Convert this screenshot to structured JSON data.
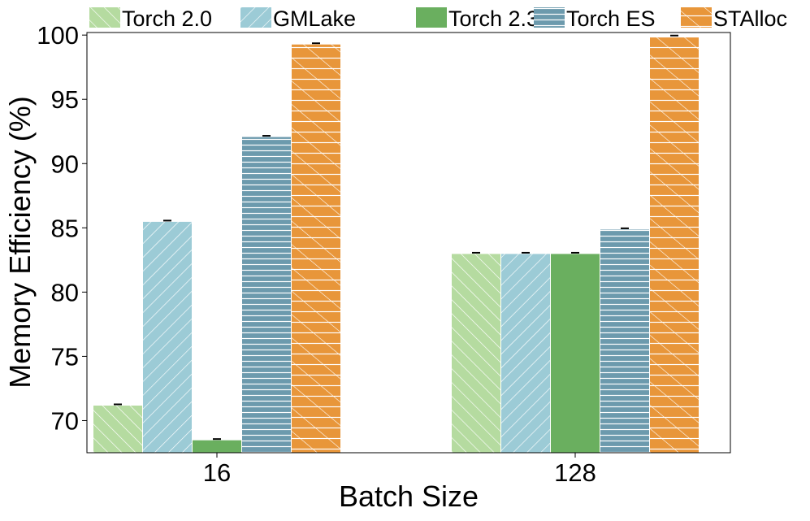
{
  "chart_data": {
    "type": "bar",
    "title": "",
    "xlabel": "Batch Size",
    "ylabel": "Memory Efficiency (%)",
    "categories": [
      "16",
      "128"
    ],
    "ylim": [
      67.5,
      100.2
    ],
    "yticks": [
      70,
      75,
      80,
      85,
      90,
      95,
      100
    ],
    "legend_position": "top",
    "grid": false,
    "series": [
      {
        "name": "Torch 2.0",
        "values": [
          71.2,
          83.0
        ],
        "color": "#b5dba0",
        "hatch": "backslash"
      },
      {
        "name": "GMLake",
        "values": [
          85.5,
          83.0
        ],
        "color": "#9ccbd6",
        "hatch": "slash"
      },
      {
        "name": "Torch 2.3",
        "values": [
          68.5,
          83.0
        ],
        "color": "#6aaf5f",
        "hatch": "none"
      },
      {
        "name": "Torch ES",
        "values": [
          92.1,
          84.9
        ],
        "color": "#6c9aad",
        "hatch": "horizontal"
      },
      {
        "name": "STAlloc",
        "values": [
          99.3,
          99.9
        ],
        "color": "#e8963a",
        "hatch": "cross"
      }
    ]
  }
}
